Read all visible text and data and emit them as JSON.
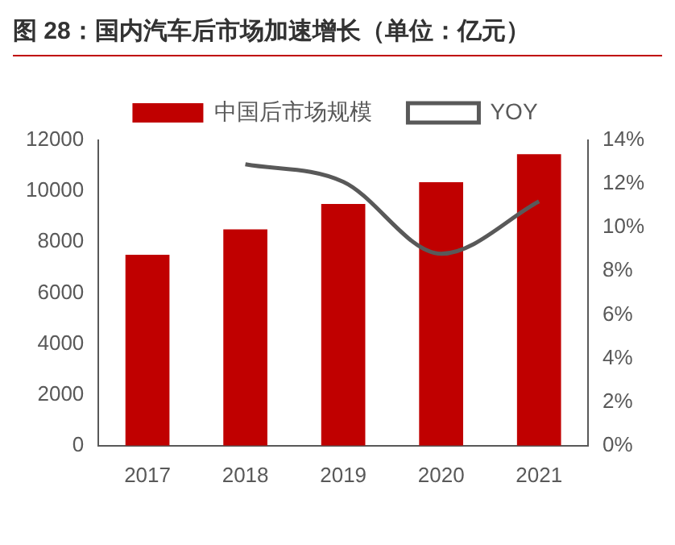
{
  "chart_data": {
    "type": "bar",
    "title": "图 28：国内汽车后市场加速增长（单位：亿元）",
    "categories": [
      "2017",
      "2018",
      "2019",
      "2020",
      "2021"
    ],
    "series": [
      {
        "name": "中国后市场规模",
        "color": "#c00000",
        "values": [
          7500,
          8500,
          9500,
          10350,
          11450
        ]
      },
      {
        "name": "YOY",
        "type": "line",
        "axis": "y2",
        "color": "#595959",
        "values": [
          null,
          12.9,
          12.1,
          8.8,
          11.2
        ]
      }
    ],
    "ylim": [
      0,
      12000
    ],
    "yticks": [
      0,
      2000,
      4000,
      6000,
      8000,
      10000,
      12000
    ],
    "y2lim": [
      0,
      14
    ],
    "y2ticks": [
      {
        "value": 0,
        "label": "0%"
      },
      {
        "value": 2,
        "label": "2%"
      },
      {
        "value": 4,
        "label": "4%"
      },
      {
        "value": 6,
        "label": "6%"
      },
      {
        "value": 8,
        "label": "8%"
      },
      {
        "value": 10,
        "label": "10%"
      },
      {
        "value": 12,
        "label": "12%"
      },
      {
        "value": 14,
        "label": "14%"
      }
    ],
    "grid": false,
    "legend": "top",
    "marker": "none"
  }
}
